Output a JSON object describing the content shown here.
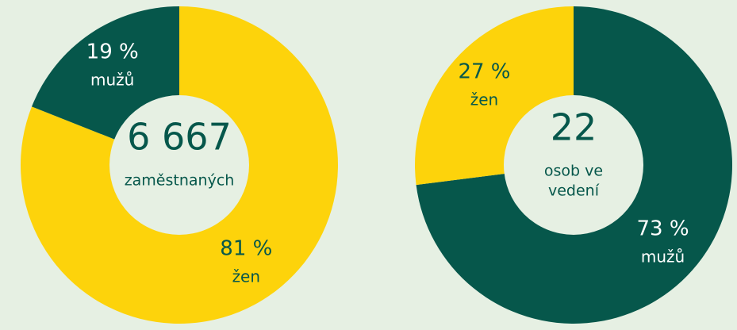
{
  "chart_data": [
    {
      "type": "donut",
      "categories": [
        "žen",
        "mužů"
      ],
      "values": [
        81,
        19
      ],
      "value_labels": [
        "81 %",
        "19 %"
      ],
      "colors": [
        "#fdd30b",
        "#06574b"
      ],
      "label_colors": [
        "#06574b",
        "#ffffff"
      ],
      "center": {
        "value": 6667,
        "label": "6 667"
      },
      "center_caption": [
        "zaměstnaných"
      ]
    },
    {
      "type": "donut",
      "categories": [
        "mužů",
        "žen"
      ],
      "values": [
        73,
        27
      ],
      "value_labels": [
        "73 %",
        "27 %"
      ],
      "colors": [
        "#06574b",
        "#fdd30b"
      ],
      "label_colors": [
        "#ffffff",
        "#06574b"
      ],
      "center": 22,
      "center_caption": [
        "osob ve",
        "vedení"
      ]
    }
  ]
}
